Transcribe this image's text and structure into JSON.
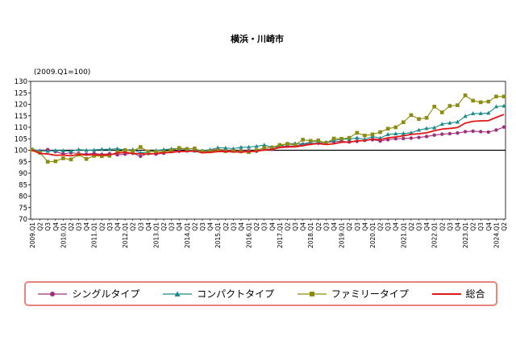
{
  "chart_data": {
    "type": "line",
    "title": "横浜・川崎市",
    "unit_note": "(2009.Q1=100)",
    "ylim": [
      70,
      130
    ],
    "yticks": [
      70,
      75,
      80,
      85,
      90,
      95,
      100,
      105,
      110,
      115,
      120,
      125,
      130
    ],
    "reference_line": 100,
    "grid": false,
    "legend_position": "bottom",
    "x": [
      "2009.Q1",
      "Q2",
      "Q3",
      "Q4",
      "2010.Q1",
      "Q2",
      "Q3",
      "Q4",
      "2011.Q1",
      "Q2",
      "Q3",
      "Q4",
      "2012.Q1",
      "Q2",
      "Q3",
      "Q4",
      "2013.Q1",
      "Q2",
      "Q3",
      "Q4",
      "2014.Q1",
      "Q2",
      "Q3",
      "Q4",
      "2015.Q1",
      "Q2",
      "Q3",
      "Q4",
      "2016.Q1",
      "Q2",
      "Q3",
      "Q4",
      "2017.Q1",
      "Q2",
      "Q3",
      "Q4",
      "2018.Q1",
      "Q2",
      "Q3",
      "Q4",
      "2019.Q1",
      "Q2",
      "Q3",
      "Q4",
      "2020.Q1",
      "Q2",
      "Q3",
      "Q4",
      "2021.Q1",
      "Q2",
      "Q3",
      "Q4",
      "2022.Q1",
      "Q2",
      "Q3",
      "Q4",
      "2023.Q1",
      "Q2",
      "Q3",
      "Q4",
      "2024.Q1",
      "Q2"
    ],
    "series": [
      {
        "name": "シングルタイプ",
        "color": "#a0307a",
        "marker": "circle",
        "values": [
          100.2,
          99.6,
          100.3,
          99.4,
          98.4,
          98.9,
          98.6,
          98.3,
          98.6,
          98.2,
          98.5,
          98.0,
          98.3,
          98.7,
          97.4,
          98.6,
          98.3,
          98.7,
          99.4,
          99.6,
          99.7,
          100.2,
          99.6,
          99.9,
          100.4,
          100.0,
          99.8,
          99.8,
          99.8,
          99.6,
          100.5,
          100.4,
          101.6,
          101.8,
          101.9,
          102.6,
          102.9,
          103.1,
          103.4,
          103.7,
          103.9,
          103.6,
          103.9,
          104.3,
          104.6,
          104.0,
          104.6,
          105.0,
          105.1,
          105.3,
          105.6,
          106.0,
          106.6,
          107.0,
          107.2,
          107.5,
          108.1,
          108.3,
          108.1,
          107.9,
          108.8,
          110.1
        ]
      },
      {
        "name": "コンパクトタイプ",
        "color": "#1a8a8a",
        "marker": "triangle",
        "values": [
          100.4,
          99.8,
          99.6,
          99.9,
          99.8,
          99.6,
          100.3,
          100.0,
          100.1,
          100.4,
          100.4,
          100.7,
          100.1,
          100.3,
          98.9,
          99.2,
          99.9,
          100.3,
          100.6,
          100.8,
          100.3,
          99.7,
          99.8,
          100.2,
          101.1,
          101.0,
          100.7,
          101.3,
          101.4,
          101.7,
          102.3,
          101.3,
          101.7,
          102.8,
          103.0,
          102.7,
          103.6,
          103.9,
          103.4,
          104.2,
          104.9,
          104.8,
          105.4,
          104.7,
          106.0,
          105.3,
          106.9,
          107.2,
          107.3,
          107.6,
          108.8,
          109.5,
          109.8,
          111.4,
          111.9,
          112.3,
          114.8,
          116.0,
          116.0,
          116.2,
          119.0,
          119.3
        ]
      },
      {
        "name": "ファミリータイプ",
        "color": "#8c8c10",
        "marker": "square",
        "values": [
          100.2,
          98.9,
          95.0,
          95.2,
          96.5,
          96.0,
          98.1,
          96.2,
          97.6,
          97.4,
          97.6,
          99.2,
          100.1,
          99.6,
          101.4,
          99.4,
          99.4,
          99.3,
          100.0,
          101.0,
          100.6,
          100.8,
          99.4,
          99.5,
          100.0,
          99.6,
          99.7,
          99.5,
          99.2,
          100.0,
          101.1,
          101.2,
          102.3,
          102.8,
          102.3,
          104.6,
          104.1,
          104.3,
          103.1,
          105.1,
          105.0,
          105.4,
          107.6,
          106.4,
          106.9,
          107.9,
          109.4,
          110.0,
          112.2,
          115.3,
          113.6,
          114.1,
          119.0,
          116.5,
          119.3,
          119.6,
          123.9,
          121.6,
          120.9,
          121.2,
          123.4,
          123.4
        ]
      },
      {
        "name": "総合",
        "color": "#e01818",
        "marker": "none",
        "values": [
          100.0,
          98.6,
          98.4,
          97.8,
          97.9,
          97.6,
          98.2,
          97.9,
          98.1,
          97.9,
          98.0,
          98.8,
          99.1,
          98.6,
          98.5,
          98.3,
          98.6,
          98.9,
          99.1,
          99.5,
          99.5,
          99.7,
          98.9,
          99.1,
          99.4,
          99.5,
          99.3,
          99.2,
          99.4,
          99.6,
          100.1,
          100.4,
          101.2,
          101.4,
          101.5,
          102.0,
          102.6,
          102.9,
          102.5,
          102.8,
          103.5,
          103.5,
          104.1,
          104.2,
          104.9,
          104.6,
          105.4,
          105.8,
          106.3,
          106.9,
          107.2,
          107.6,
          108.5,
          109.2,
          109.5,
          109.9,
          111.8,
          112.6,
          112.8,
          112.9,
          114.3,
          115.6
        ]
      }
    ]
  }
}
